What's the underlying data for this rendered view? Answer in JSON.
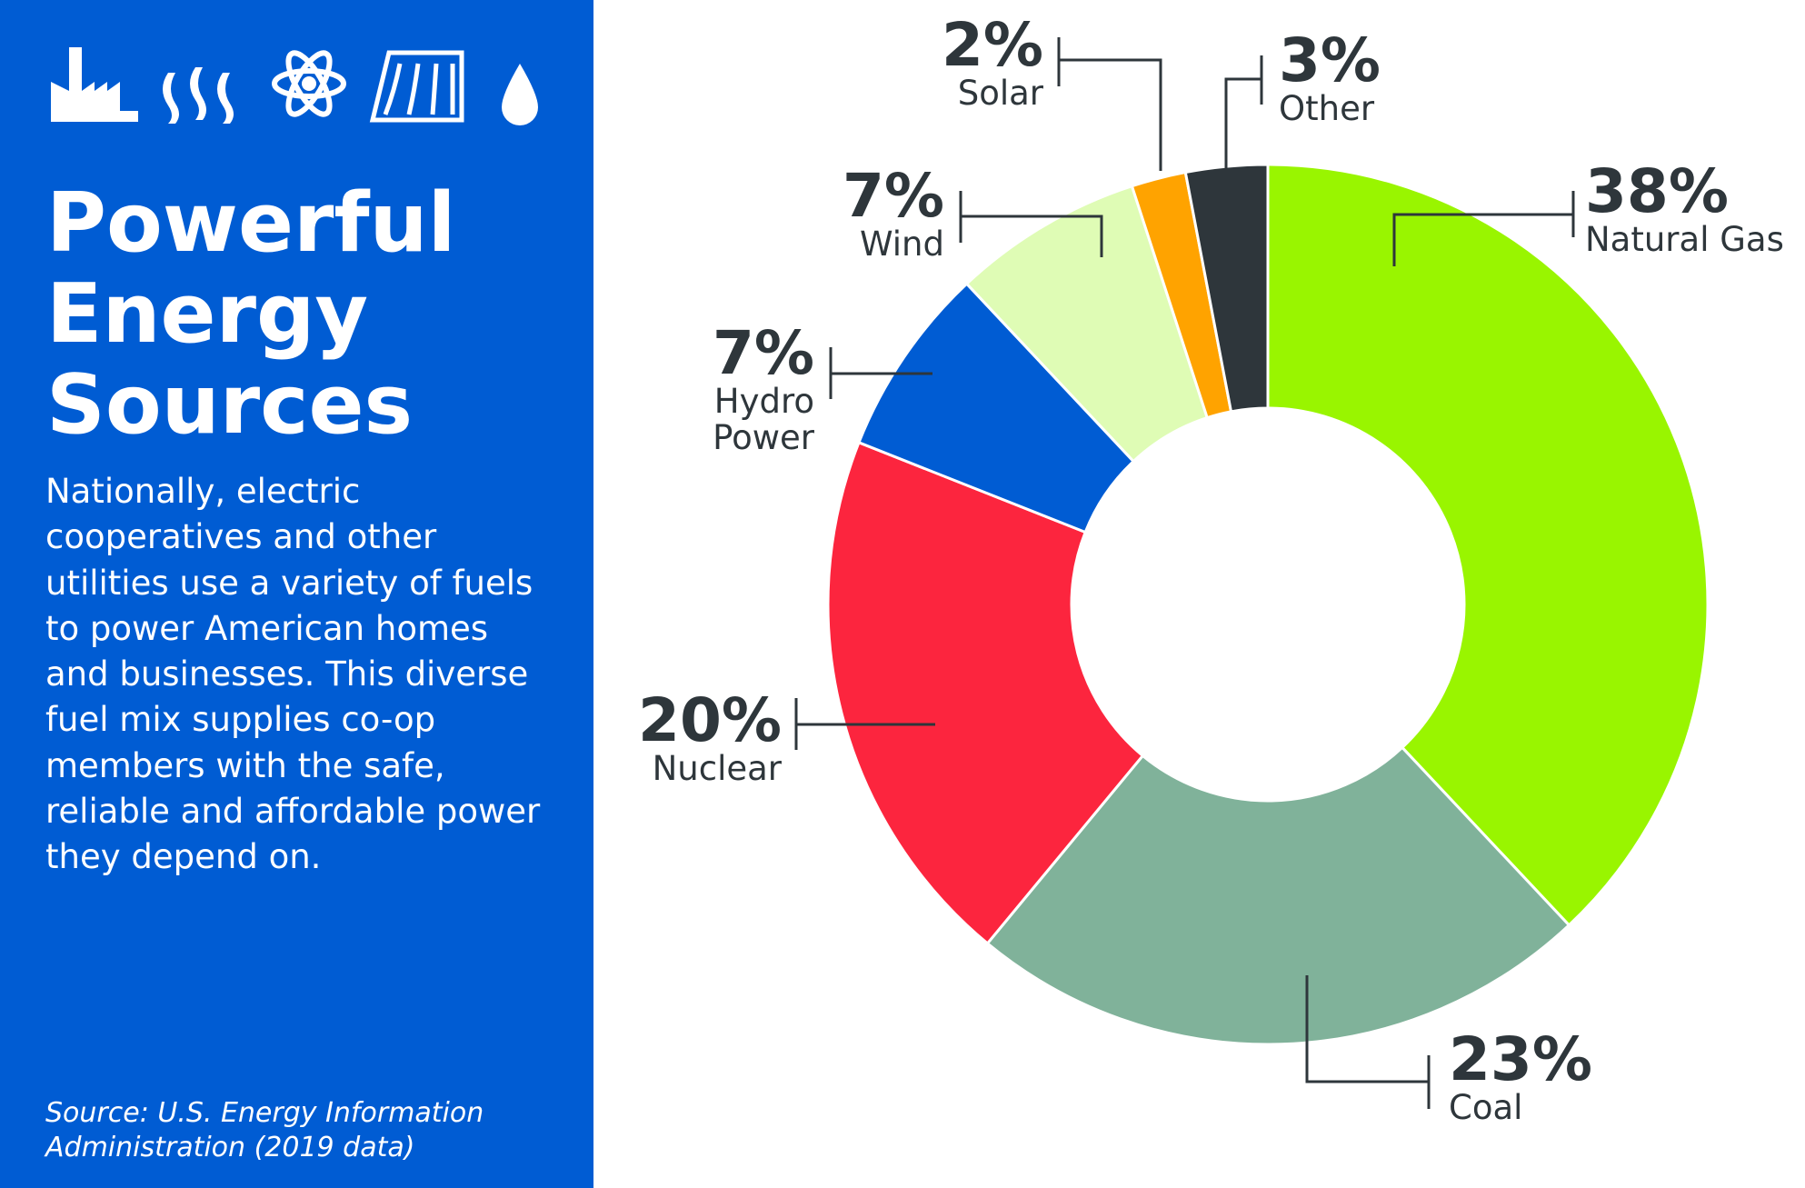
{
  "panel": {
    "title": "Powerful Energy Sources",
    "body": "Nationally, electric cooperatives and other utilities use a variety of fuels to power American homes and businesses. This diverse fuel mix supplies co-op members with the safe, reliable and affordable power they depend on.",
    "source": "Source: U.S. Energy Information Administration (2019 data)"
  },
  "chart_data": {
    "type": "donut",
    "categories": [
      "Natural Gas",
      "Coal",
      "Nuclear",
      "Hydro Power",
      "Wind",
      "Solar",
      "Other"
    ],
    "values": [
      38,
      23,
      20,
      7,
      7,
      2,
      3
    ],
    "value_labels": [
      "38%",
      "23%",
      "20%",
      "7%",
      "7%",
      "2%",
      "3%"
    ],
    "colors": [
      "#99f500",
      "#80b29a",
      "#fc253e",
      "#005cd3",
      "#dffcb5",
      "#ffa300",
      "#2e363b"
    ]
  }
}
